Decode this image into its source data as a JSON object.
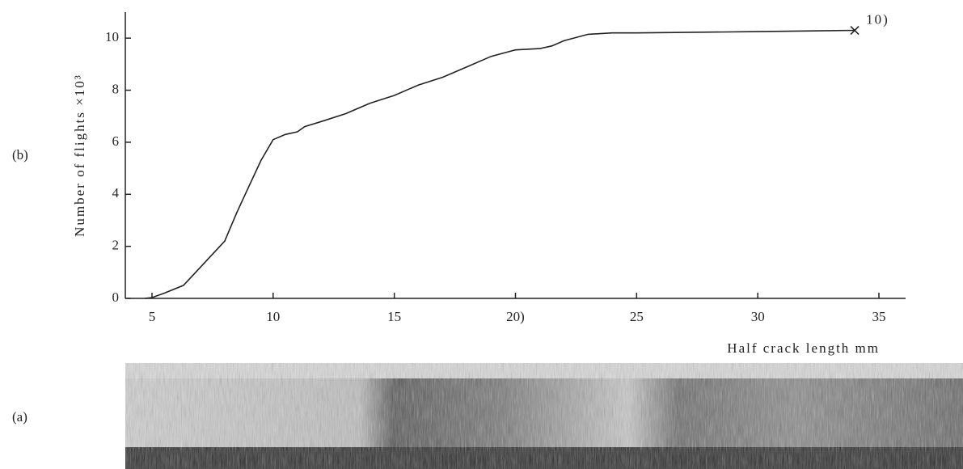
{
  "chart_data": {
    "type": "line",
    "panel_b_label": "(b)",
    "panel_a_label": "(a)",
    "x_label": "Half crack length mm",
    "y_label": "Number of flights ×10³",
    "annotation": "10)",
    "color": "#222222",
    "x": [
      4.7,
      5,
      5.5,
      6.3,
      7,
      7.5,
      8,
      8.5,
      9,
      9.5,
      10,
      10.5,
      11,
      11.3,
      12,
      13,
      14,
      15,
      16,
      17,
      18,
      19,
      20,
      21,
      21.5,
      22,
      23,
      24,
      25,
      30,
      34
    ],
    "values": [
      0,
      0.03,
      0.2,
      0.5,
      1.2,
      1.7,
      2.2,
      3.3,
      4.3,
      5.3,
      6.1,
      6.3,
      6.4,
      6.6,
      6.8,
      7.1,
      7.5,
      7.8,
      8.2,
      8.5,
      8.9,
      9.3,
      9.55,
      9.6,
      9.7,
      9.9,
      10.15,
      10.2,
      10.2,
      10.25,
      10.3
    ],
    "xlim": [
      3.9,
      36.1
    ],
    "ylim": [
      0,
      11
    ],
    "xticks": [
      5,
      10,
      15,
      {
        "value": 20,
        "label": "20)"
      },
      25,
      30,
      35
    ],
    "yticks": [
      0,
      2,
      4,
      6,
      8,
      10
    ]
  }
}
